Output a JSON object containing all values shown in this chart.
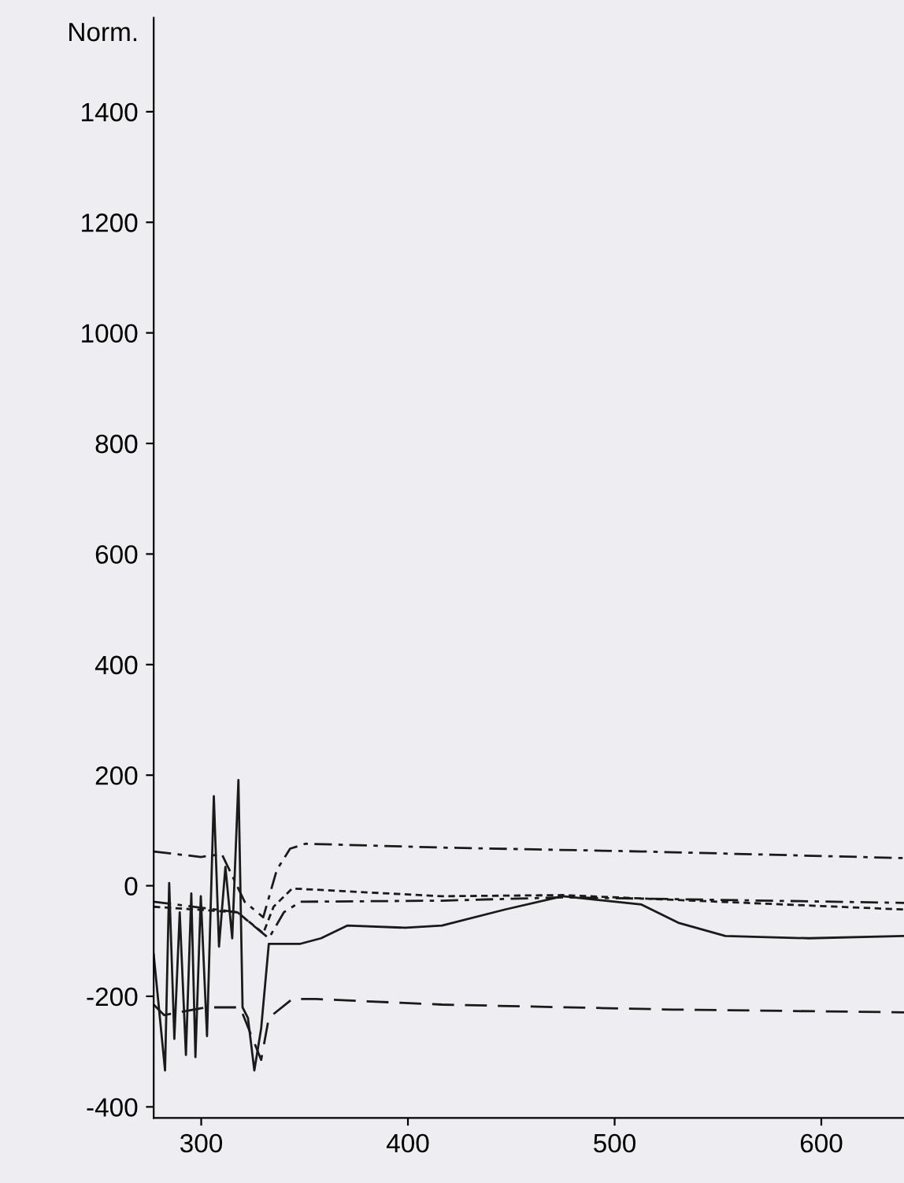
{
  "chart_data": {
    "type": "line",
    "ylabel": "Norm.",
    "xlim": [
      277,
      640
    ],
    "ylim": [
      -420,
      1570
    ],
    "xticks": [
      300,
      400,
      500,
      600
    ],
    "yticks": [
      -400,
      -200,
      0,
      200,
      400,
      600,
      800,
      1000,
      1200,
      1400
    ],
    "grid": false,
    "legend": false,
    "marker": "none",
    "series": [
      {
        "color": "#1a1a1a",
        "line_style": "solid",
        "x": [
          277,
          282.5,
          284.5,
          287,
          289.6,
          292.6,
          295.2,
          297.2,
          299.8,
          302.8,
          306.1,
          308.6,
          311.7,
          315,
          318,
          320,
          322.6,
          325.7,
          329,
          332.7,
          339,
          348,
          358,
          370.8,
          398.8,
          416.5,
          447,
          474.9,
          513,
          530.8,
          553.6,
          594,
          640
        ],
        "values": [
          -124,
          -334,
          5,
          -277,
          -48,
          -306,
          -14,
          -310,
          -19,
          -272,
          162,
          -110,
          34,
          -95,
          191,
          -220,
          -239,
          -334,
          -258,
          -105,
          -105,
          -105,
          -95,
          -72,
          -76,
          -72,
          -43,
          -19,
          -34,
          -67,
          -91,
          -95,
          -91
        ]
      },
      {
        "color": "#1a1a1a",
        "line_style": "dashdot",
        "x": [
          277,
          299.8,
          310,
          321,
          330,
          336.6,
          343,
          350.5,
          416.5,
          513,
          640
        ],
        "values": [
          62,
          52,
          57,
          -29,
          -57,
          29,
          67,
          76,
          69,
          62,
          50
        ]
      },
      {
        "color": "#1a1a1a",
        "line_style": "dashed",
        "x": [
          277,
          282,
          302.3,
          318.8,
          329,
          332.7,
          344,
          355.6,
          416.5,
          528,
          640
        ],
        "values": [
          -215,
          -234,
          -220,
          -220,
          -315,
          -239,
          -205,
          -205,
          -215,
          -224,
          -229
        ]
      },
      {
        "color": "#1a1a1a",
        "line_style": "dotted",
        "x": [
          277,
          317.5,
          330,
          335,
          344,
          416.5,
          474.9,
          640
        ],
        "values": [
          -38,
          -48,
          -86,
          -38,
          -5,
          -19,
          -17,
          -43
        ]
      },
      {
        "color": "#1a1a1a",
        "line_style": "dashdot",
        "x": [
          277,
          317.5,
          332.7,
          340,
          348,
          416.5,
          474.9,
          640
        ],
        "values": [
          -29,
          -48,
          -95,
          -48,
          -29,
          -27,
          -21,
          -31
        ]
      }
    ]
  }
}
